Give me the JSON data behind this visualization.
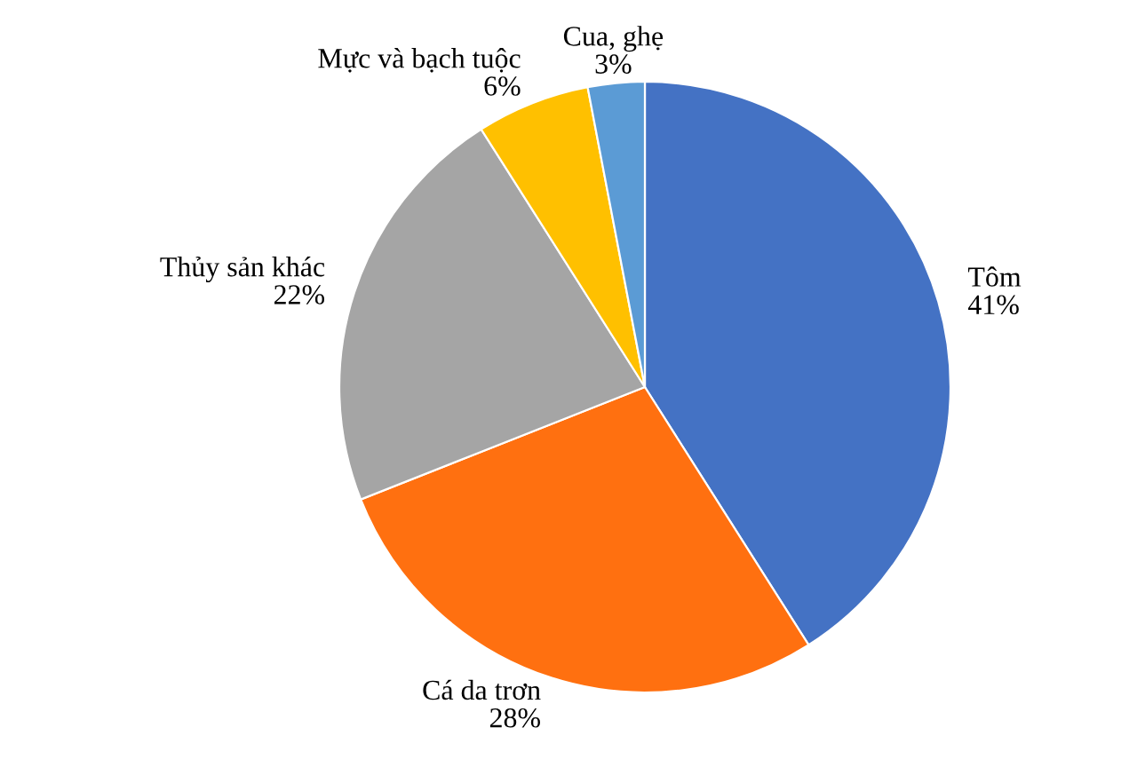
{
  "chart_data": {
    "type": "pie",
    "categories": [
      "Tôm",
      "Cá da trơn",
      "Thủy sản khác",
      "Mực và bạch tuộc",
      "Cua, ghẹ"
    ],
    "values": [
      41,
      28,
      22,
      6,
      3
    ],
    "value_labels": [
      "41%",
      "28%",
      "22%",
      "6%",
      "3%"
    ],
    "colors": [
      "#4472c4",
      "#ff7010",
      "#a5a5a5",
      "#ffc000",
      "#5b9bd5"
    ],
    "legend": false
  }
}
